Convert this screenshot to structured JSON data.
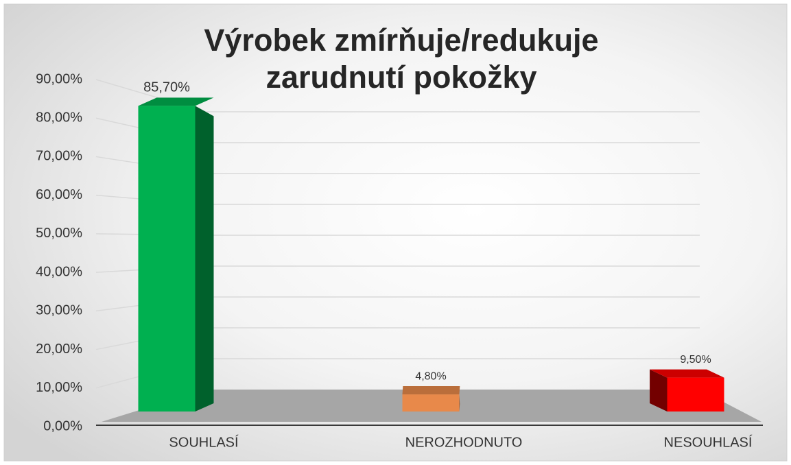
{
  "chart_data": {
    "type": "bar3d",
    "title": "Výrobek zmírňuje/redukuje zarudnutí pokožky",
    "categories": [
      "SOUHLASÍ",
      "NEROZHODNUTO",
      "NESOUHLASÍ"
    ],
    "values": [
      85.7,
      4.8,
      9.5
    ],
    "value_labels": [
      "85,70%",
      "4,80%",
      "9,50%"
    ],
    "colors": [
      "#00b050",
      "#e8894a",
      "#ff0000"
    ],
    "ylim": [
      0,
      90
    ],
    "yticks": [
      {
        "value": 0,
        "label": "0,00%"
      },
      {
        "value": 10,
        "label": "10,00%"
      },
      {
        "value": 20,
        "label": "20,00%"
      },
      {
        "value": 30,
        "label": "30,00%"
      },
      {
        "value": 40,
        "label": "40,00%"
      },
      {
        "value": 50,
        "label": "50,00%"
      },
      {
        "value": 60,
        "label": "60,00%"
      },
      {
        "value": 70,
        "label": "70,00%"
      },
      {
        "value": 80,
        "label": "80,00%"
      },
      {
        "value": 90,
        "label": "90,00%"
      }
    ],
    "grid": true
  }
}
